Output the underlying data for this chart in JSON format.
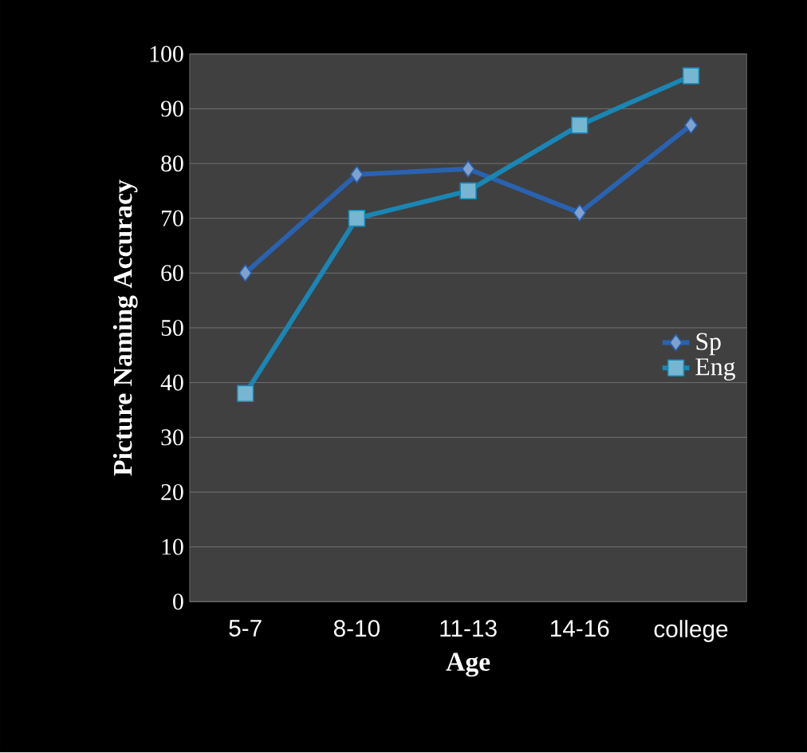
{
  "chart_data": {
    "type": "line",
    "xlabel": "Age",
    "ylabel": "Picture Naming Accuracy",
    "categories": [
      "5-7",
      "8-10",
      "11-13",
      "14-16",
      "college"
    ],
    "series": [
      {
        "name": "Sp",
        "color": "#2a62b0",
        "marker": "diamond",
        "values": [
          60,
          78,
          79,
          71,
          87
        ]
      },
      {
        "name": "Eng",
        "color": "#1a86b4",
        "marker": "square",
        "values": [
          38,
          70,
          75,
          87,
          96
        ]
      }
    ],
    "ylim": [
      0,
      100
    ],
    "yticks": [
      0,
      10,
      20,
      30,
      40,
      50,
      60,
      70,
      80,
      90,
      100
    ],
    "grid": "y",
    "legend": "right"
  }
}
